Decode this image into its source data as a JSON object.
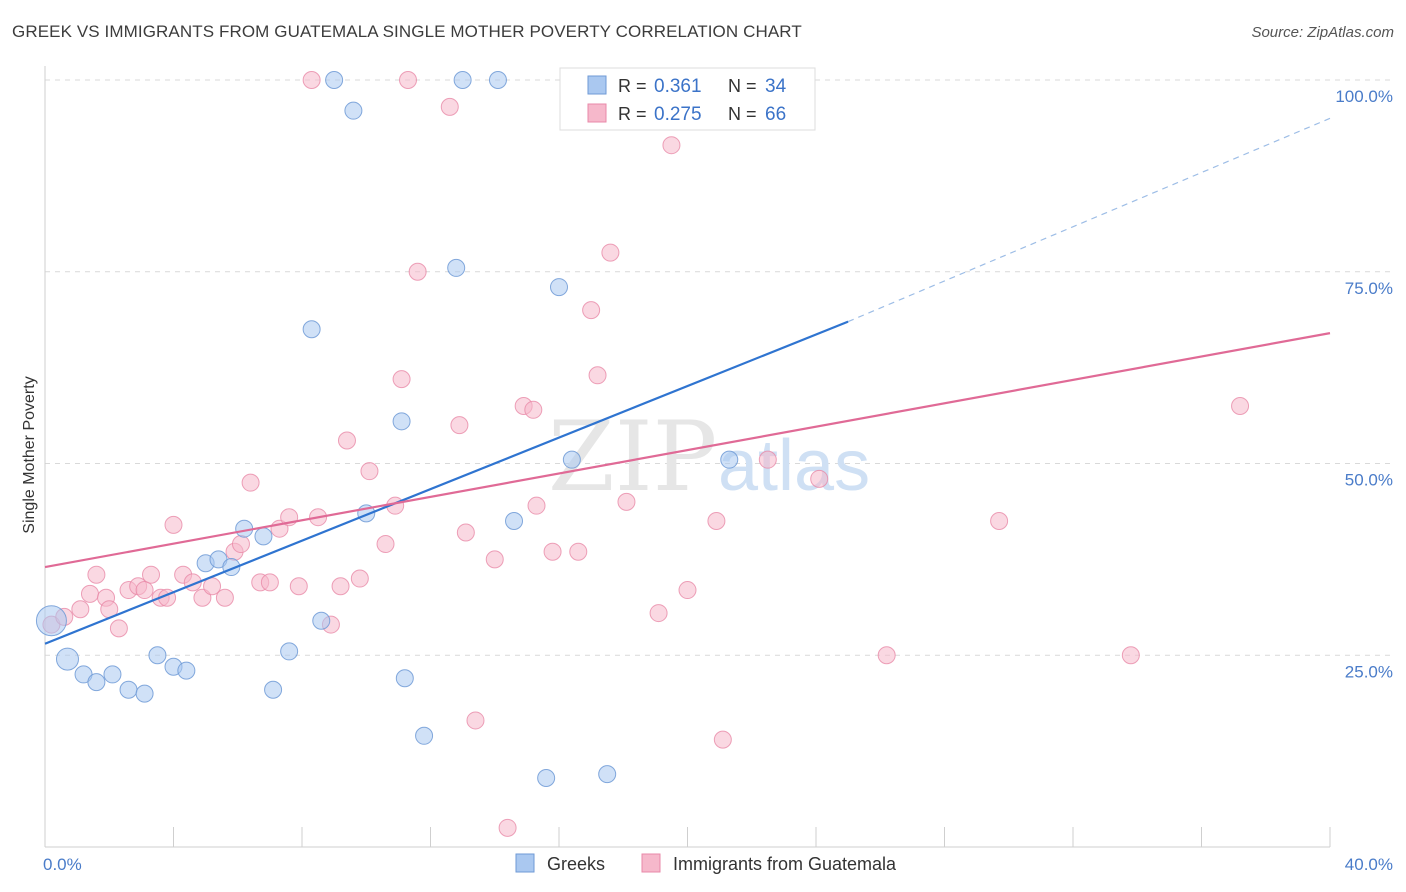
{
  "title": "GREEK VS IMMIGRANTS FROM GUATEMALA SINGLE MOTHER POVERTY CORRELATION CHART",
  "source": "Source: ZipAtlas.com",
  "watermark": {
    "zip": "ZIP",
    "atlas": "atlas"
  },
  "legend": {
    "r_label": "R =",
    "n_label": "N =",
    "rows": [
      {
        "r": "0.361",
        "n": "34"
      },
      {
        "r": "0.275",
        "n": "66"
      }
    ]
  },
  "colors": {
    "greek_fill": "#aac8f0",
    "greek_stroke": "#6f9ad6",
    "greek_line": "#2f74d0",
    "guat_fill": "#f6b8cb",
    "guat_stroke": "#e889a8",
    "guat_line": "#e06a96",
    "grid": "#d9d9d9",
    "axis_tick_text": "#4a7cc9"
  },
  "chart_data": {
    "type": "scatter",
    "title": "GREEK VS IMMIGRANTS FROM GUATEMALA SINGLE MOTHER POVERTY CORRELATION CHART",
    "xlabel": "",
    "ylabel": "Single Mother Poverty",
    "xlim": [
      0,
      40
    ],
    "ylim": [
      0,
      100
    ],
    "x_tick_labels": [
      "0.0%",
      "40.0%"
    ],
    "y_tick_labels": [
      "25.0%",
      "50.0%",
      "75.0%",
      "100.0%"
    ],
    "y_tick_values": [
      25,
      50,
      75,
      100
    ],
    "grid": true,
    "legend_position": "top-center",
    "series": [
      {
        "name": "Greeks",
        "r": 0.361,
        "n": 34,
        "trend": {
          "x0": 0,
          "y0": 26.5,
          "x1": 25,
          "y1": 68.5,
          "dashed_to_x": 40,
          "dashed_to_y": 95
        },
        "points": [
          [
            0.2,
            29.5
          ],
          [
            0.7,
            24.5
          ],
          [
            1.2,
            22.5
          ],
          [
            1.6,
            21.5
          ],
          [
            2.1,
            22.5
          ],
          [
            2.6,
            20.5
          ],
          [
            3.1,
            20.0
          ],
          [
            3.5,
            25.0
          ],
          [
            4.0,
            23.5
          ],
          [
            4.4,
            23.0
          ],
          [
            5.0,
            37.0
          ],
          [
            5.4,
            37.5
          ],
          [
            5.8,
            36.5
          ],
          [
            6.2,
            41.5
          ],
          [
            6.8,
            40.5
          ],
          [
            7.1,
            20.5
          ],
          [
            7.6,
            25.5
          ],
          [
            8.3,
            67.5
          ],
          [
            8.6,
            29.5
          ],
          [
            9.0,
            100.0
          ],
          [
            9.6,
            96.0
          ],
          [
            10.0,
            43.5
          ],
          [
            11.1,
            55.5
          ],
          [
            11.2,
            22.0
          ],
          [
            11.8,
            14.5
          ],
          [
            12.8,
            75.5
          ],
          [
            13.0,
            100.0
          ],
          [
            14.1,
            100.0
          ],
          [
            14.6,
            42.5
          ],
          [
            15.6,
            9.0
          ],
          [
            16.0,
            73.0
          ],
          [
            16.4,
            50.5
          ],
          [
            17.5,
            9.5
          ],
          [
            21.3,
            50.5
          ]
        ],
        "point_sizes": {
          "large": [
            [
              0.2,
              29.5
            ],
            [
              0.7,
              24.5
            ]
          ]
        }
      },
      {
        "name": "Immigrants from Guatemala",
        "r": 0.275,
        "n": 66,
        "trend": {
          "x0": 0,
          "y0": 36.5,
          "x1": 40,
          "y1": 67.0
        },
        "points": [
          [
            0.2,
            29.0
          ],
          [
            0.6,
            30.0
          ],
          [
            1.1,
            31.0
          ],
          [
            1.4,
            33.0
          ],
          [
            1.6,
            35.5
          ],
          [
            1.9,
            32.5
          ],
          [
            2.0,
            31.0
          ],
          [
            2.3,
            28.5
          ],
          [
            2.6,
            33.5
          ],
          [
            2.9,
            34.0
          ],
          [
            3.1,
            33.5
          ],
          [
            3.3,
            35.5
          ],
          [
            3.6,
            32.5
          ],
          [
            3.8,
            32.5
          ],
          [
            4.0,
            42.0
          ],
          [
            4.3,
            35.5
          ],
          [
            4.6,
            34.5
          ],
          [
            4.9,
            32.5
          ],
          [
            5.2,
            34.0
          ],
          [
            5.6,
            32.5
          ],
          [
            5.9,
            38.5
          ],
          [
            6.1,
            39.5
          ],
          [
            6.4,
            47.5
          ],
          [
            6.7,
            34.5
          ],
          [
            7.0,
            34.5
          ],
          [
            7.3,
            41.5
          ],
          [
            7.6,
            43.0
          ],
          [
            7.9,
            34.0
          ],
          [
            8.3,
            100.0
          ],
          [
            8.5,
            43.0
          ],
          [
            8.9,
            29.0
          ],
          [
            9.2,
            34.0
          ],
          [
            9.4,
            53.0
          ],
          [
            9.8,
            35.0
          ],
          [
            10.1,
            49.0
          ],
          [
            10.6,
            39.5
          ],
          [
            10.9,
            44.5
          ],
          [
            11.1,
            61.0
          ],
          [
            11.3,
            100.0
          ],
          [
            11.6,
            75.0
          ],
          [
            12.6,
            96.5
          ],
          [
            12.9,
            55.0
          ],
          [
            13.1,
            41.0
          ],
          [
            13.4,
            16.5
          ],
          [
            14.0,
            37.5
          ],
          [
            14.4,
            2.5
          ],
          [
            14.9,
            57.5
          ],
          [
            15.2,
            57.0
          ],
          [
            15.3,
            44.5
          ],
          [
            15.8,
            38.5
          ],
          [
            16.6,
            38.5
          ],
          [
            17.0,
            70.0
          ],
          [
            17.2,
            61.5
          ],
          [
            17.6,
            77.5
          ],
          [
            18.1,
            45.0
          ],
          [
            19.1,
            30.5
          ],
          [
            19.5,
            91.5
          ],
          [
            20.0,
            33.5
          ],
          [
            20.9,
            42.5
          ],
          [
            21.1,
            14.0
          ],
          [
            22.5,
            50.5
          ],
          [
            24.1,
            48.0
          ],
          [
            26.2,
            25.0
          ],
          [
            29.7,
            42.5
          ],
          [
            33.8,
            25.0
          ],
          [
            37.2,
            57.5
          ]
        ]
      }
    ]
  }
}
